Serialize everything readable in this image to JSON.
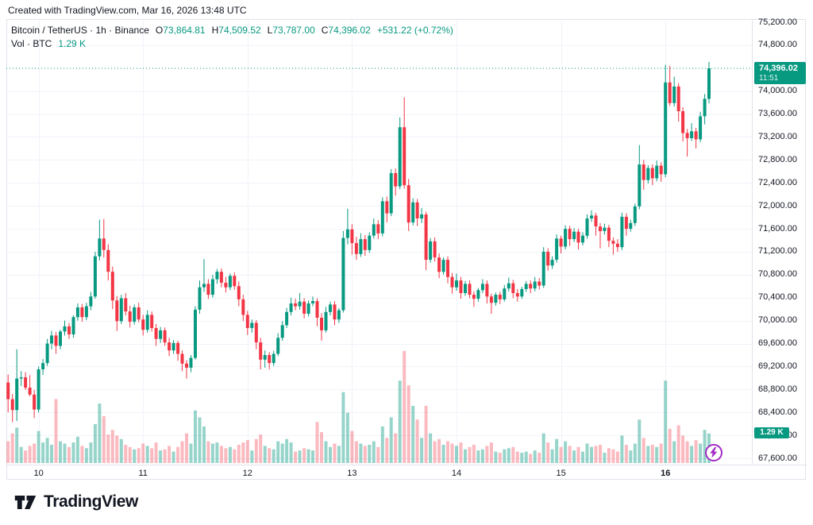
{
  "attribution": "Created with TradingView.com, Mar 16, 2026 13:48 UTC",
  "legend": {
    "symbol": {
      "title": "Bitcoin / TetherUS · 1h · Binance",
      "o_label": "O",
      "o": "73,864.81",
      "h_label": "H",
      "h": "74,509.52",
      "l_label": "L",
      "l": "73,787.00",
      "c_label": "C",
      "c": "74,396.02",
      "change": "+531.22 (+0.72%)"
    },
    "volume": {
      "label": "Vol · BTC",
      "value": "1.29 K"
    }
  },
  "badges": {
    "price": {
      "value": "74,396.02",
      "countdown": "11:51"
    },
    "volume": "1.29 K"
  },
  "price_axis": {
    "labels": [
      "75,200.00",
      "74,800.00",
      "74,000.00",
      "73,600.00",
      "73,200.00",
      "72,800.00",
      "72,400.00",
      "72,000.00",
      "71,600.00",
      "71,200.00",
      "70,800.00",
      "70,400.00",
      "70,000.00",
      "69,600.00",
      "69,200.00",
      "68,800.00",
      "68,400.00",
      "68,000.00",
      "67,600.00"
    ]
  },
  "time_axis": {
    "ticks": [
      {
        "label": "10",
        "index": 7,
        "bold": false
      },
      {
        "label": "11",
        "index": 31,
        "bold": false
      },
      {
        "label": "12",
        "index": 55,
        "bold": false
      },
      {
        "label": "13",
        "index": 79,
        "bold": false
      },
      {
        "label": "14",
        "index": 103,
        "bold": false
      },
      {
        "label": "15",
        "index": 127,
        "bold": false
      },
      {
        "label": "16",
        "index": 151,
        "bold": true
      }
    ]
  },
  "logo": {
    "text": "TradingView"
  },
  "colors": {
    "up": "#089981",
    "down": "#f23645",
    "vol_up": "rgba(8,153,129,0.42)",
    "vol_down": "rgba(242,54,69,0.34)",
    "grid": "#f0f3fa",
    "frame": "#e0e3eb",
    "text": "#131722",
    "badge": "#089981",
    "lightning": "#a12bc4"
  },
  "chart_data": {
    "type": "candlestick+volume",
    "title": "Bitcoin / TetherUS · 1h · Binance",
    "pair": "Bitcoin / TetherUS",
    "interval": "1h",
    "exchange": "Binance",
    "last_bar": {
      "open": 73864.81,
      "high": 74509.52,
      "low": 73787.0,
      "close": 74396.02,
      "change": 531.22,
      "change_pct": 0.72
    },
    "current_price": 74396.02,
    "bar_countdown": "11:51",
    "last_volume_k": 1.29,
    "price_axis_top": 75200,
    "price_axis_bottom": 67600,
    "price_axis_step": 400,
    "volume_unit": "K BTC",
    "candles_format": [
      "open",
      "high",
      "low",
      "close",
      "volume_k"
    ],
    "candles": [
      [
        68920,
        69060,
        68400,
        68630,
        0.95
      ],
      [
        68630,
        68720,
        68230,
        68440,
        1.3
      ],
      [
        68440,
        69500,
        68250,
        68990,
        1.55
      ],
      [
        68990,
        69120,
        68860,
        69010,
        0.7
      ],
      [
        69010,
        69100,
        68790,
        68830,
        0.55
      ],
      [
        68830,
        69050,
        68680,
        68710,
        0.75
      ],
      [
        68710,
        68790,
        68300,
        68450,
        0.85
      ],
      [
        68450,
        69200,
        68400,
        69150,
        1.4
      ],
      [
        69150,
        69330,
        69050,
        69260,
        0.9
      ],
      [
        69260,
        69680,
        69210,
        69600,
        1.1
      ],
      [
        69600,
        69820,
        69500,
        69740,
        0.8
      ],
      [
        69740,
        69800,
        69420,
        69560,
        2.8
      ],
      [
        69560,
        69840,
        69500,
        69810,
        0.95
      ],
      [
        69810,
        70000,
        69740,
        69900,
        0.85
      ],
      [
        69900,
        69960,
        69680,
        69760,
        0.7
      ],
      [
        69760,
        70090,
        69700,
        70060,
        0.9
      ],
      [
        70060,
        70300,
        70000,
        70230,
        1.15
      ],
      [
        70230,
        70290,
        69980,
        70060,
        0.75
      ],
      [
        70060,
        70310,
        70010,
        70250,
        0.65
      ],
      [
        70250,
        70500,
        70180,
        70420,
        0.9
      ],
      [
        70420,
        71200,
        70380,
        71120,
        1.7
      ],
      [
        71120,
        71760,
        71050,
        71430,
        2.6
      ],
      [
        71430,
        71770,
        71100,
        71230,
        2.05
      ],
      [
        71230,
        71330,
        70700,
        70850,
        1.25
      ],
      [
        70850,
        70940,
        70200,
        70350,
        1.45
      ],
      [
        70350,
        70430,
        69820,
        69990,
        1.2
      ],
      [
        69990,
        70450,
        69940,
        70390,
        1.05
      ],
      [
        70390,
        70480,
        70090,
        70160,
        0.8
      ],
      [
        70160,
        70260,
        69880,
        69980,
        0.7
      ],
      [
        69980,
        70280,
        69930,
        70230,
        0.6
      ],
      [
        70230,
        70310,
        69970,
        70020,
        0.65
      ],
      [
        70020,
        70100,
        69740,
        69840,
        0.85
      ],
      [
        69840,
        70180,
        69790,
        70100,
        0.75
      ],
      [
        70100,
        70160,
        69810,
        69870,
        0.65
      ],
      [
        69870,
        69940,
        69560,
        69680,
        0.9
      ],
      [
        69680,
        69890,
        69610,
        69830,
        0.55
      ],
      [
        69830,
        69880,
        69560,
        69620,
        0.6
      ],
      [
        69620,
        69700,
        69380,
        69480,
        0.75
      ],
      [
        69480,
        69660,
        69420,
        69610,
        0.5
      ],
      [
        69610,
        69650,
        69300,
        69420,
        0.7
      ],
      [
        69420,
        69480,
        69120,
        69250,
        0.95
      ],
      [
        69250,
        69310,
        68990,
        69180,
        1.3
      ],
      [
        69180,
        69400,
        69100,
        69350,
        0.85
      ],
      [
        69350,
        70250,
        69320,
        70190,
        2.3
      ],
      [
        70190,
        70700,
        70120,
        70580,
        2.0
      ],
      [
        70580,
        71070,
        70500,
        70640,
        1.6
      ],
      [
        70640,
        70720,
        70380,
        70450,
        0.95
      ],
      [
        70450,
        70800,
        70400,
        70720,
        0.85
      ],
      [
        70720,
        70900,
        70640,
        70850,
        0.9
      ],
      [
        70850,
        70910,
        70580,
        70660,
        0.75
      ],
      [
        70660,
        70760,
        70490,
        70580,
        0.65
      ],
      [
        70580,
        70820,
        70530,
        70780,
        0.7
      ],
      [
        70780,
        70840,
        70540,
        70600,
        0.6
      ],
      [
        70600,
        70680,
        70250,
        70370,
        0.8
      ],
      [
        70370,
        70450,
        69990,
        70100,
        0.9
      ],
      [
        70100,
        70170,
        69750,
        69870,
        1.0
      ],
      [
        69870,
        70020,
        69790,
        69960,
        0.55
      ],
      [
        69960,
        70010,
        69500,
        69620,
        1.05
      ],
      [
        69620,
        69700,
        69150,
        69320,
        1.25
      ],
      [
        69320,
        69480,
        69180,
        69400,
        0.75
      ],
      [
        69400,
        69450,
        69150,
        69260,
        0.65
      ],
      [
        69260,
        69470,
        69210,
        69420,
        0.6
      ],
      [
        69420,
        69780,
        69380,
        69700,
        0.95
      ],
      [
        69700,
        69990,
        69650,
        69920,
        0.85
      ],
      [
        69920,
        70220,
        69870,
        70150,
        1.05
      ],
      [
        70150,
        70400,
        70090,
        70300,
        0.9
      ],
      [
        70300,
        70380,
        70180,
        70250,
        0.5
      ],
      [
        70250,
        70480,
        70190,
        70330,
        0.55
      ],
      [
        70330,
        70390,
        70040,
        70120,
        0.65
      ],
      [
        70120,
        70350,
        70070,
        70300,
        0.6
      ],
      [
        70300,
        70420,
        70250,
        70340,
        0.55
      ],
      [
        70340,
        70390,
        69900,
        70050,
        1.8
      ],
      [
        70050,
        70130,
        69650,
        69830,
        1.35
      ],
      [
        69830,
        70240,
        69790,
        70150,
        0.95
      ],
      [
        70150,
        70330,
        70090,
        70280,
        0.7
      ],
      [
        70280,
        70340,
        69920,
        70020,
        0.85
      ],
      [
        70020,
        70220,
        69960,
        70180,
        0.75
      ],
      [
        70180,
        71560,
        70140,
        71440,
        3.1
      ],
      [
        71440,
        71950,
        71330,
        71590,
        2.2
      ],
      [
        71590,
        71680,
        71150,
        71350,
        1.4
      ],
      [
        71350,
        71460,
        71060,
        71160,
        0.95
      ],
      [
        71160,
        71520,
        71110,
        71420,
        0.85
      ],
      [
        71420,
        71490,
        71130,
        71230,
        0.75
      ],
      [
        71230,
        71540,
        71180,
        71480,
        0.8
      ],
      [
        71480,
        71780,
        71430,
        71680,
        0.95
      ],
      [
        71680,
        71750,
        71420,
        71520,
        0.7
      ],
      [
        71520,
        72150,
        71470,
        72080,
        1.6
      ],
      [
        72080,
        72160,
        71710,
        71870,
        1.1
      ],
      [
        71870,
        72640,
        71820,
        72570,
        2.0
      ],
      [
        72570,
        72650,
        72180,
        72340,
        1.3
      ],
      [
        72340,
        73540,
        72290,
        73370,
        3.6
      ],
      [
        73370,
        73890,
        72300,
        72360,
        4.9
      ],
      [
        72360,
        72470,
        71560,
        71710,
        3.4
      ],
      [
        71710,
        72130,
        71660,
        72060,
        2.5
      ],
      [
        72060,
        72120,
        71650,
        71780,
        1.9
      ],
      [
        71780,
        71960,
        71700,
        71850,
        1.1
      ],
      [
        71850,
        71900,
        70880,
        71060,
        2.5
      ],
      [
        71060,
        71440,
        71010,
        71380,
        1.3
      ],
      [
        71380,
        71450,
        71030,
        71100,
        0.95
      ],
      [
        71100,
        71170,
        70740,
        70850,
        1.05
      ],
      [
        70850,
        71100,
        70800,
        71060,
        0.8
      ],
      [
        71060,
        71120,
        70650,
        70760,
        0.95
      ],
      [
        70760,
        70830,
        70470,
        70580,
        0.85
      ],
      [
        70580,
        70820,
        70520,
        70700,
        0.75
      ],
      [
        70700,
        70760,
        70380,
        70480,
        0.9
      ],
      [
        70480,
        70690,
        70430,
        70640,
        0.6
      ],
      [
        70640,
        70700,
        70390,
        70450,
        0.7
      ],
      [
        70450,
        70510,
        70240,
        70380,
        0.8
      ],
      [
        70380,
        70570,
        70330,
        70530,
        0.55
      ],
      [
        70530,
        70720,
        70480,
        70640,
        0.6
      ],
      [
        70640,
        70700,
        70300,
        70420,
        0.75
      ],
      [
        70420,
        70470,
        70120,
        70310,
        0.9
      ],
      [
        70310,
        70490,
        70260,
        70450,
        0.5
      ],
      [
        70450,
        70500,
        70290,
        70370,
        0.45
      ],
      [
        70370,
        70620,
        70330,
        70560,
        0.6
      ],
      [
        70560,
        70750,
        70510,
        70650,
        0.65
      ],
      [
        70650,
        70710,
        70390,
        70480,
        0.7
      ],
      [
        70480,
        70550,
        70330,
        70420,
        0.5
      ],
      [
        70420,
        70590,
        70380,
        70550,
        0.45
      ],
      [
        70550,
        70690,
        70500,
        70640,
        0.5
      ],
      [
        70640,
        70700,
        70480,
        70560,
        0.4
      ],
      [
        70560,
        70760,
        70510,
        70680,
        0.55
      ],
      [
        70680,
        70740,
        70540,
        70610,
        0.45
      ],
      [
        70610,
        71280,
        70570,
        71200,
        1.3
      ],
      [
        71200,
        71260,
        70870,
        70960,
        0.9
      ],
      [
        70960,
        71120,
        70900,
        71060,
        0.6
      ],
      [
        71060,
        71500,
        71010,
        71430,
        1.05
      ],
      [
        71430,
        71480,
        71170,
        71290,
        0.7
      ],
      [
        71290,
        71660,
        71240,
        71600,
        0.95
      ],
      [
        71600,
        71650,
        71300,
        71420,
        0.75
      ],
      [
        71420,
        71610,
        71370,
        71550,
        0.55
      ],
      [
        71550,
        71600,
        71240,
        71360,
        0.7
      ],
      [
        71360,
        71540,
        71310,
        71480,
        0.5
      ],
      [
        71480,
        71850,
        71430,
        71780,
        0.85
      ],
      [
        71780,
        71920,
        71720,
        71830,
        0.7
      ],
      [
        71830,
        71880,
        71480,
        71640,
        0.75
      ],
      [
        71640,
        71700,
        71260,
        71560,
        0.8
      ],
      [
        71560,
        71690,
        71500,
        71620,
        0.45
      ],
      [
        71620,
        71670,
        71280,
        71390,
        0.65
      ],
      [
        71390,
        71450,
        71150,
        71340,
        0.6
      ],
      [
        71340,
        71420,
        71200,
        71280,
        0.5
      ],
      [
        71280,
        71880,
        71230,
        71810,
        1.2
      ],
      [
        71810,
        71870,
        71480,
        71600,
        0.8
      ],
      [
        71600,
        71760,
        71550,
        71700,
        0.55
      ],
      [
        71700,
        72040,
        71650,
        71990,
        0.85
      ],
      [
        71990,
        73060,
        71940,
        72720,
        1.9
      ],
      [
        72720,
        72800,
        72280,
        72450,
        1.1
      ],
      [
        72450,
        72710,
        72390,
        72660,
        0.75
      ],
      [
        72660,
        72720,
        72360,
        72480,
        0.8
      ],
      [
        72480,
        72790,
        72430,
        72700,
        0.7
      ],
      [
        72700,
        72760,
        72420,
        72550,
        0.85
      ],
      [
        72550,
        74460,
        72500,
        74150,
        3.6
      ],
      [
        74150,
        74440,
        73740,
        73790,
        1.5
      ],
      [
        73790,
        74250,
        73730,
        74080,
        0.95
      ],
      [
        74080,
        74140,
        73470,
        73650,
        1.65
      ],
      [
        73650,
        73720,
        73120,
        73270,
        1.2
      ],
      [
        73270,
        73340,
        72860,
        73180,
        0.95
      ],
      [
        73180,
        73440,
        73130,
        73300,
        0.75
      ],
      [
        73300,
        73360,
        73000,
        73160,
        1.0
      ],
      [
        73160,
        73640,
        73110,
        73560,
        0.85
      ],
      [
        73560,
        73950,
        73420,
        73865,
        1.45
      ],
      [
        73864.81,
        74509.52,
        73787,
        74396.02,
        1.29
      ]
    ]
  }
}
